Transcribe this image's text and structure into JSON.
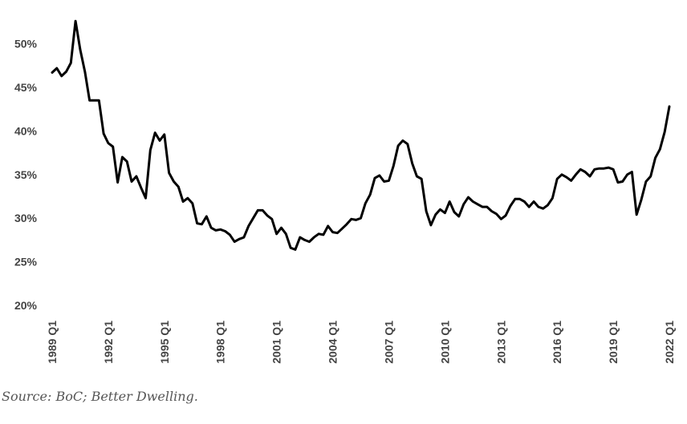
{
  "chart_data": {
    "type": "line",
    "title": "",
    "xlabel": "",
    "ylabel": "",
    "ylim": [
      20,
      52.5
    ],
    "y_ticks": [
      20,
      25,
      30,
      35,
      40,
      45,
      50
    ],
    "y_tick_labels": [
      "20%",
      "25%",
      "30%",
      "35%",
      "40%",
      "45%",
      "50%"
    ],
    "x_tick_labels": [
      "1989 Q1",
      "1992 Q1",
      "1995 Q1",
      "1998 Q1",
      "2001 Q1",
      "2004 Q1",
      "2007 Q1",
      "2010 Q1",
      "2013 Q1",
      "2016 Q1",
      "2019 Q1",
      "2022 Q1"
    ],
    "x_start": "1989 Q1",
    "x_end": "2022 Q1",
    "grid": false,
    "legend": "none",
    "line_color": "#000000",
    "series": [
      {
        "values": [
          46.7,
          47.2,
          46.3,
          46.8,
          47.8,
          52.6,
          49.3,
          46.8,
          43.5,
          43.5,
          43.5,
          39.7,
          38.6,
          38.2,
          34.1,
          37.0,
          36.5,
          34.2,
          34.8,
          33.5,
          32.3,
          37.8,
          39.8,
          38.9,
          39.6,
          35.2,
          34.2,
          33.6,
          31.9,
          32.3,
          31.7,
          29.4,
          29.3,
          30.2,
          28.9,
          28.6,
          28.7,
          28.5,
          28.1,
          27.3,
          27.6,
          27.8,
          29.1,
          30.0,
          30.9,
          30.9,
          30.3,
          29.9,
          28.2,
          28.9,
          28.2,
          26.6,
          26.4,
          27.8,
          27.5,
          27.3,
          27.8,
          28.2,
          28.1,
          29.1,
          28.4,
          28.3,
          28.8,
          29.3,
          29.9,
          29.8,
          30.0,
          31.7,
          32.7,
          34.6,
          34.9,
          34.2,
          34.3,
          36.0,
          38.3,
          38.9,
          38.5,
          36.3,
          34.8,
          34.5,
          30.8,
          29.2,
          30.4,
          31.0,
          30.6,
          31.9,
          30.7,
          30.2,
          31.6,
          32.4,
          31.9,
          31.6,
          31.3,
          31.3,
          30.8,
          30.5,
          29.9,
          30.3,
          31.4,
          32.2,
          32.2,
          31.9,
          31.3,
          31.9,
          31.3,
          31.1,
          31.5,
          32.3,
          34.5,
          35.0,
          34.7,
          34.3,
          35.0,
          35.6,
          35.3,
          34.8,
          35.6,
          35.7,
          35.7,
          35.8,
          35.6,
          34.1,
          34.2,
          35.0,
          35.3,
          30.4,
          32.1,
          34.2,
          34.8,
          36.9,
          37.9,
          39.9,
          42.8
        ]
      }
    ]
  },
  "footer": {
    "source": "Source: BoC; Better Dwelling."
  }
}
